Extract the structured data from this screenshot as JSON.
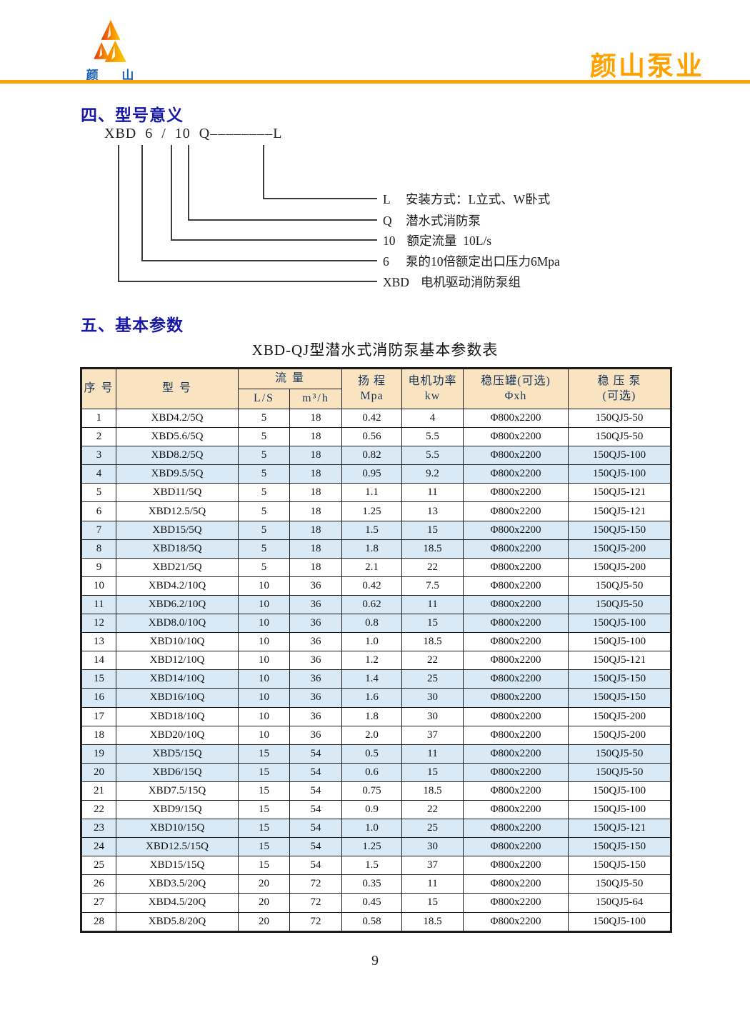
{
  "header": {
    "logo_text": "颜 山",
    "brand": "颜山泵业",
    "accent_color": "#F8A200"
  },
  "section4": {
    "heading": "四、型号意义",
    "model_code": "XBD 6 / 10 Q––––––––L",
    "legend": [
      {
        "code": "L",
        "desc": "安装方式：L立式、W卧式"
      },
      {
        "code": "Q",
        "desc": "潜水式消防泵"
      },
      {
        "code": "10",
        "desc": "额定流量  10L/s"
      },
      {
        "code": "6",
        "desc": "泵的10倍额定出口压力6Mpa"
      },
      {
        "code": "XBD",
        "desc": "电机驱动消防泵组"
      }
    ]
  },
  "section5": {
    "heading": "五、基本参数",
    "table_title": "XBD-QJ型潜水式消防泵基本参数表"
  },
  "table": {
    "header": {
      "col_index": "序 号",
      "col_model": "型 号",
      "col_flow": "流 量",
      "col_flow_ls": "L/S",
      "col_flow_m3h": "m³/h",
      "col_head_line1": "扬 程",
      "col_head_line2": "Mpa",
      "col_power_line1": "电机功率",
      "col_power_line2": "kw",
      "col_tank_line1": "稳压罐(可选)",
      "col_tank_line2": "Φxh",
      "col_pump_line1": "稳 压 泵",
      "col_pump_line2": "(可选)"
    },
    "colors": {
      "header_bg": "#FAE3C1",
      "stripe_bg": "#D9EAF6",
      "header_text": "#16365C"
    },
    "rows": [
      {
        "no": "1",
        "model": "XBD4.2/5Q",
        "ls": "5",
        "m3h": "18",
        "mpa": "0.42",
        "kw": "4",
        "tank": "Φ800x2200",
        "pump": "150QJ5-50",
        "hl": false
      },
      {
        "no": "2",
        "model": "XBD5.6/5Q",
        "ls": "5",
        "m3h": "18",
        "mpa": "0.56",
        "kw": "5.5",
        "tank": "Φ800x2200",
        "pump": "150QJ5-50",
        "hl": false
      },
      {
        "no": "3",
        "model": "XBD8.2/5Q",
        "ls": "5",
        "m3h": "18",
        "mpa": "0.82",
        "kw": "5.5",
        "tank": "Φ800x2200",
        "pump": "150QJ5-100",
        "hl": true
      },
      {
        "no": "4",
        "model": "XBD9.5/5Q",
        "ls": "5",
        "m3h": "18",
        "mpa": "0.95",
        "kw": "9.2",
        "tank": "Φ800x2200",
        "pump": "150QJ5-100",
        "hl": true
      },
      {
        "no": "5",
        "model": "XBD11/5Q",
        "ls": "5",
        "m3h": "18",
        "mpa": "1.1",
        "kw": "11",
        "tank": "Φ800x2200",
        "pump": "150QJ5-121",
        "hl": false
      },
      {
        "no": "6",
        "model": "XBD12.5/5Q",
        "ls": "5",
        "m3h": "18",
        "mpa": "1.25",
        "kw": "13",
        "tank": "Φ800x2200",
        "pump": "150QJ5-121",
        "hl": false
      },
      {
        "no": "7",
        "model": "XBD15/5Q",
        "ls": "5",
        "m3h": "18",
        "mpa": "1.5",
        "kw": "15",
        "tank": "Φ800x2200",
        "pump": "150QJ5-150",
        "hl": true
      },
      {
        "no": "8",
        "model": "XBD18/5Q",
        "ls": "5",
        "m3h": "18",
        "mpa": "1.8",
        "kw": "18.5",
        "tank": "Φ800x2200",
        "pump": "150QJ5-200",
        "hl": true
      },
      {
        "no": "9",
        "model": "XBD21/5Q",
        "ls": "5",
        "m3h": "18",
        "mpa": "2.1",
        "kw": "22",
        "tank": "Φ800x2200",
        "pump": "150QJ5-200",
        "hl": false
      },
      {
        "no": "10",
        "model": "XBD4.2/10Q",
        "ls": "10",
        "m3h": "36",
        "mpa": "0.42",
        "kw": "7.5",
        "tank": "Φ800x2200",
        "pump": "150QJ5-50",
        "hl": false
      },
      {
        "no": "11",
        "model": "XBD6.2/10Q",
        "ls": "10",
        "m3h": "36",
        "mpa": "0.62",
        "kw": "11",
        "tank": "Φ800x2200",
        "pump": "150QJ5-50",
        "hl": true
      },
      {
        "no": "12",
        "model": "XBD8.0/10Q",
        "ls": "10",
        "m3h": "36",
        "mpa": "0.8",
        "kw": "15",
        "tank": "Φ800x2200",
        "pump": "150QJ5-100",
        "hl": true
      },
      {
        "no": "13",
        "model": "XBD10/10Q",
        "ls": "10",
        "m3h": "36",
        "mpa": "1.0",
        "kw": "18.5",
        "tank": "Φ800x2200",
        "pump": "150QJ5-100",
        "hl": false
      },
      {
        "no": "14",
        "model": "XBD12/10Q",
        "ls": "10",
        "m3h": "36",
        "mpa": "1.2",
        "kw": "22",
        "tank": "Φ800x2200",
        "pump": "150QJ5-121",
        "hl": false
      },
      {
        "no": "15",
        "model": "XBD14/10Q",
        "ls": "10",
        "m3h": "36",
        "mpa": "1.4",
        "kw": "25",
        "tank": "Φ800x2200",
        "pump": "150QJ5-150",
        "hl": true
      },
      {
        "no": "16",
        "model": "XBD16/10Q",
        "ls": "10",
        "m3h": "36",
        "mpa": "1.6",
        "kw": "30",
        "tank": "Φ800x2200",
        "pump": "150QJ5-150",
        "hl": true
      },
      {
        "no": "17",
        "model": "XBD18/10Q",
        "ls": "10",
        "m3h": "36",
        "mpa": "1.8",
        "kw": "30",
        "tank": "Φ800x2200",
        "pump": "150QJ5-200",
        "hl": false
      },
      {
        "no": "18",
        "model": "XBD20/10Q",
        "ls": "10",
        "m3h": "36",
        "mpa": "2.0",
        "kw": "37",
        "tank": "Φ800x2200",
        "pump": "150QJ5-200",
        "hl": false
      },
      {
        "no": "19",
        "model": "XBD5/15Q",
        "ls": "15",
        "m3h": "54",
        "mpa": "0.5",
        "kw": "11",
        "tank": "Φ800x2200",
        "pump": "150QJ5-50",
        "hl": true
      },
      {
        "no": "20",
        "model": "XBD6/15Q",
        "ls": "15",
        "m3h": "54",
        "mpa": "0.6",
        "kw": "15",
        "tank": "Φ800x2200",
        "pump": "150QJ5-50",
        "hl": true
      },
      {
        "no": "21",
        "model": "XBD7.5/15Q",
        "ls": "15",
        "m3h": "54",
        "mpa": "0.75",
        "kw": "18.5",
        "tank": "Φ800x2200",
        "pump": "150QJ5-100",
        "hl": false
      },
      {
        "no": "22",
        "model": "XBD9/15Q",
        "ls": "15",
        "m3h": "54",
        "mpa": "0.9",
        "kw": "22",
        "tank": "Φ800x2200",
        "pump": "150QJ5-100",
        "hl": false
      },
      {
        "no": "23",
        "model": "XBD10/15Q",
        "ls": "15",
        "m3h": "54",
        "mpa": "1.0",
        "kw": "25",
        "tank": "Φ800x2200",
        "pump": "150QJ5-121",
        "hl": true
      },
      {
        "no": "24",
        "model": "XBD12.5/15Q",
        "ls": "15",
        "m3h": "54",
        "mpa": "1.25",
        "kw": "30",
        "tank": "Φ800x2200",
        "pump": "150QJ5-150",
        "hl": true
      },
      {
        "no": "25",
        "model": "XBD15/15Q",
        "ls": "15",
        "m3h": "54",
        "mpa": "1.5",
        "kw": "37",
        "tank": "Φ800x2200",
        "pump": "150QJ5-150",
        "hl": false
      },
      {
        "no": "26",
        "model": "XBD3.5/20Q",
        "ls": "20",
        "m3h": "72",
        "mpa": "0.35",
        "kw": "11",
        "tank": "Φ800x2200",
        "pump": "150QJ5-50",
        "hl": false
      },
      {
        "no": "27",
        "model": "XBD4.5/20Q",
        "ls": "20",
        "m3h": "72",
        "mpa": "0.45",
        "kw": "15",
        "tank": "Φ800x2200",
        "pump": "150QJ5-64",
        "hl": false
      },
      {
        "no": "28",
        "model": "XBD5.8/20Q",
        "ls": "20",
        "m3h": "72",
        "mpa": "0.58",
        "kw": "18.5",
        "tank": "Φ800x2200",
        "pump": "150QJ5-100",
        "hl": false
      }
    ]
  },
  "footer": {
    "page_number": "9"
  }
}
